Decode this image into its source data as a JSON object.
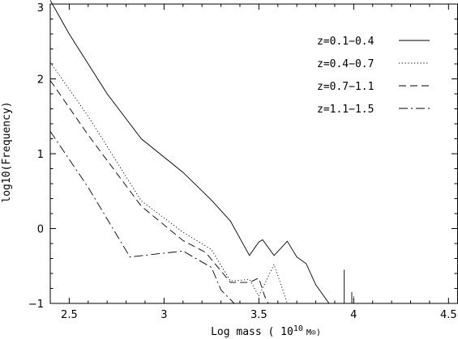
{
  "chart_data": {
    "type": "line",
    "xlabel": "Log mass ( 10",
    "xlabel_sup": "10",
    "xlabel_unit": "M⊙)",
    "ylabel": "log10(Frequency)",
    "xlim": [
      2.4,
      4.55
    ],
    "ylim": [
      -1,
      3
    ],
    "xticks": [
      2.5,
      3,
      3.5,
      4,
      4.5
    ],
    "xtick_labels": [
      "2.5",
      "3",
      "3.5",
      "4",
      "4.5"
    ],
    "yticks": [
      -1,
      0,
      1,
      2,
      3
    ],
    "ytick_labels": [
      "−1",
      "0",
      "1",
      "2",
      "3"
    ],
    "legend_position": "top-right",
    "series": [
      {
        "name": "z=0.1−0.4",
        "style": "solid",
        "points": [
          [
            2.4,
            3.05
          ],
          [
            2.5,
            2.6
          ],
          [
            2.7,
            1.8
          ],
          [
            2.88,
            1.2
          ],
          [
            3.1,
            0.75
          ],
          [
            3.25,
            0.38
          ],
          [
            3.35,
            0.1
          ],
          [
            3.45,
            -0.36
          ],
          [
            3.5,
            -0.18
          ],
          [
            3.52,
            -0.15
          ],
          [
            3.58,
            -0.36
          ],
          [
            3.65,
            -0.17
          ],
          [
            3.7,
            -0.38
          ],
          [
            3.75,
            -0.47
          ],
          [
            3.8,
            -0.75
          ],
          [
            3.87,
            -1.0
          ]
        ]
      },
      {
        "name": "z=0.4−0.7",
        "style": "dotted",
        "points": [
          [
            2.4,
            2.22
          ],
          [
            2.6,
            1.5
          ],
          [
            2.88,
            0.37
          ],
          [
            3.1,
            -0.05
          ],
          [
            3.25,
            -0.28
          ],
          [
            3.35,
            -0.7
          ],
          [
            3.45,
            -0.68
          ],
          [
            3.5,
            -0.9
          ],
          [
            3.58,
            -0.48
          ],
          [
            3.63,
            -0.85
          ],
          [
            3.65,
            -1.0
          ]
        ]
      },
      {
        "name": "z=0.7−1.1",
        "style": "dashed",
        "points": [
          [
            2.4,
            1.98
          ],
          [
            2.6,
            1.25
          ],
          [
            2.88,
            0.3
          ],
          [
            3.1,
            -0.16
          ],
          [
            3.22,
            -0.32
          ],
          [
            3.35,
            -0.72
          ],
          [
            3.45,
            -0.72
          ],
          [
            3.5,
            -0.66
          ],
          [
            3.53,
            -0.9
          ],
          [
            3.55,
            -1.0
          ]
        ]
      },
      {
        "name": "z=1.1−1.5",
        "style": "dashdot",
        "points": [
          [
            2.4,
            1.3
          ],
          [
            2.6,
            0.55
          ],
          [
            2.82,
            -0.38
          ],
          [
            3.1,
            -0.3
          ],
          [
            3.25,
            -0.52
          ],
          [
            3.3,
            -0.82
          ],
          [
            3.37,
            -1.0
          ]
        ]
      }
    ],
    "spikes": [
      {
        "x": 3.95,
        "top": -0.55,
        "style": "solid"
      },
      {
        "x": 3.99,
        "top": -0.85,
        "style": "solid"
      },
      {
        "x": 4.0,
        "top": -0.9,
        "style": "dotted"
      }
    ]
  }
}
